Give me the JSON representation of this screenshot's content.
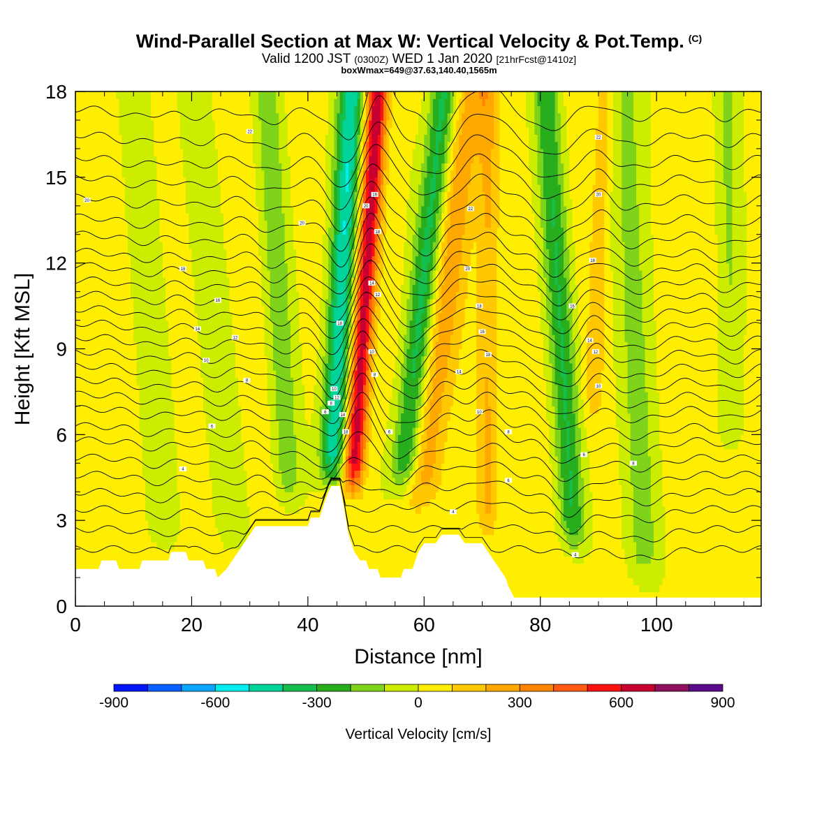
{
  "header": {
    "title": "Wind-Parallel Section at Max W: Vertical Velocity & Pot.Temp.",
    "title_mark": "(C)",
    "valid_line_main": "Valid 1200 JST",
    "valid_line_utc": "(0300Z)",
    "valid_line_date": "WED 1 Jan 2020",
    "valid_line_fcst": "[21hrFcst@1410z]",
    "box_line": "boxWmax=649@37.63,140.40,1565m"
  },
  "chart_data": {
    "type": "heatmap",
    "xlabel": "Distance [nm]",
    "ylabel": "Height [Kft MSL]",
    "xlim": [
      0,
      118
    ],
    "ylim": [
      0,
      18
    ],
    "x_ticks": [
      0,
      20,
      40,
      60,
      80,
      100
    ],
    "y_ticks": [
      0,
      3,
      6,
      9,
      12,
      15,
      18
    ],
    "colorbar": {
      "title": "Vertical Velocity [cm/s]",
      "min": -900,
      "max": 900,
      "step": 100,
      "tick_labels": [
        "-900",
        "-600",
        "-300",
        "0",
        "300",
        "600",
        "900"
      ],
      "colors": [
        "#0016ff",
        "#0a61ff",
        "#0aa5ff",
        "#00eeee",
        "#00d49a",
        "#15bf4e",
        "#28ae1d",
        "#7fd31a",
        "#ccec00",
        "#ffee00",
        "#ffc800",
        "#ffa800",
        "#ff8400",
        "#ff5a10",
        "#ff1010",
        "#c80030",
        "#901060",
        "#5a0a8a"
      ]
    },
    "terrain": [
      [
        0,
        1.3
      ],
      [
        4,
        1.3
      ],
      [
        4.5,
        1.6
      ],
      [
        7,
        1.6
      ],
      [
        7.5,
        1.3
      ],
      [
        11,
        1.3
      ],
      [
        11.5,
        1.6
      ],
      [
        16,
        1.6
      ],
      [
        16.5,
        1.9
      ],
      [
        19,
        1.9
      ],
      [
        19.5,
        1.6
      ],
      [
        22,
        1.6
      ],
      [
        22.5,
        1.3
      ],
      [
        24,
        1.3
      ],
      [
        24.5,
        1.0
      ],
      [
        26,
        1.3
      ],
      [
        27,
        1.6
      ],
      [
        28,
        1.9
      ],
      [
        29,
        2.2
      ],
      [
        30,
        2.5
      ],
      [
        31,
        2.8
      ],
      [
        40,
        2.8
      ],
      [
        40.5,
        3.1
      ],
      [
        42,
        3.1
      ],
      [
        42.5,
        3.4
      ],
      [
        43,
        3.7
      ],
      [
        43.5,
        4.0
      ],
      [
        44,
        4.2
      ],
      [
        45.5,
        4.2
      ],
      [
        46,
        3.7
      ],
      [
        46.5,
        3.1
      ],
      [
        47,
        2.5
      ],
      [
        47.5,
        2.2
      ],
      [
        48,
        1.9
      ],
      [
        49,
        1.6
      ],
      [
        50,
        1.6
      ],
      [
        50.5,
        1.3
      ],
      [
        52,
        1.3
      ],
      [
        52.5,
        1.0
      ],
      [
        56,
        1.0
      ],
      [
        56.5,
        1.3
      ],
      [
        58,
        1.3
      ],
      [
        58.5,
        1.6
      ],
      [
        59,
        1.9
      ],
      [
        60,
        2.2
      ],
      [
        62,
        2.2
      ],
      [
        63,
        2.5
      ],
      [
        66,
        2.5
      ],
      [
        67,
        2.2
      ],
      [
        70,
        2.2
      ],
      [
        71,
        1.9
      ],
      [
        72,
        1.6
      ],
      [
        73,
        1.3
      ],
      [
        74,
        1.0
      ],
      [
        74.5,
        0.7
      ],
      [
        75,
        0.5
      ],
      [
        75.5,
        0.3
      ],
      [
        118,
        0.3
      ]
    ],
    "w_features": [
      {
        "x0": 47.5,
        "x1": 52.0,
        "width": 1.8,
        "ybot": 3.5,
        "ytop": 18,
        "w": 649
      },
      {
        "x0": 44.0,
        "x1": 47.5,
        "width": 2.2,
        "ybot": 3.8,
        "ytop": 18,
        "w": -520
      },
      {
        "x0": 56.0,
        "x1": 63.5,
        "width": 2.4,
        "ybot": 3.5,
        "ytop": 18,
        "w": -380
      },
      {
        "x0": 59.0,
        "x1": 68.0,
        "width": 3.0,
        "ybot": 3.0,
        "ytop": 18,
        "w": 240
      },
      {
        "x0": 71.0,
        "x1": 71.0,
        "width": 1.8,
        "ybot": 2.0,
        "ytop": 18,
        "w": 180
      },
      {
        "x0": 86.0,
        "x1": 81.0,
        "width": 2.2,
        "ybot": 1.5,
        "ytop": 18,
        "w": -320
      },
      {
        "x0": 37.0,
        "x1": 33.0,
        "width": 2.2,
        "ybot": 3.0,
        "ytop": 18,
        "w": -200
      },
      {
        "x0": 27.0,
        "x1": 20.0,
        "width": 2.5,
        "ybot": 1.5,
        "ytop": 18,
        "w": -120
      },
      {
        "x0": 15.0,
        "x1": 10.0,
        "width": 2.5,
        "ybot": 1.5,
        "ytop": 18,
        "w": -110
      },
      {
        "x0": 98.0,
        "x1": 95.0,
        "width": 3.0,
        "ybot": 0.3,
        "ytop": 18,
        "w": -160
      },
      {
        "x0": 113.0,
        "x1": 112.0,
        "width": 2.0,
        "ybot": 5.0,
        "ytop": 18,
        "w": -140
      },
      {
        "x0": 89.0,
        "x1": 91.0,
        "width": 1.5,
        "ybot": 6.0,
        "ytop": 18,
        "w": 140
      }
    ],
    "theta_contours": {
      "count": 27,
      "base_heights_kft": [
        2.0,
        2.7,
        3.4,
        4.0,
        4.6,
        5.2,
        5.8,
        6.3,
        6.9,
        7.4,
        7.9,
        8.4,
        8.9,
        9.4,
        9.9,
        10.4,
        10.9,
        11.4,
        11.9,
        12.4,
        13.0,
        13.6,
        14.3,
        15.0,
        15.7,
        16.5,
        17.4
      ],
      "labels": [
        {
          "x": 18.5,
          "y": 4.8,
          "text": "4"
        },
        {
          "x": 23.5,
          "y": 6.3,
          "text": "6"
        },
        {
          "x": 29.5,
          "y": 7.9,
          "text": "8"
        },
        {
          "x": 22.5,
          "y": 8.6,
          "text": "10"
        },
        {
          "x": 27.5,
          "y": 9.4,
          "text": "12"
        },
        {
          "x": 21.0,
          "y": 9.7,
          "text": "14"
        },
        {
          "x": 24.5,
          "y": 10.7,
          "text": "16"
        },
        {
          "x": 18.5,
          "y": 11.8,
          "text": "18"
        },
        {
          "x": 39.0,
          "y": 13.4,
          "text": "20"
        },
        {
          "x": 2.0,
          "y": 14.2,
          "text": "20"
        },
        {
          "x": 30.0,
          "y": 16.6,
          "text": "22"
        },
        {
          "x": 43.0,
          "y": 6.8,
          "text": "6"
        },
        {
          "x": 44.0,
          "y": 7.1,
          "text": "8"
        },
        {
          "x": 44.5,
          "y": 7.6,
          "text": "10"
        },
        {
          "x": 45.0,
          "y": 7.3,
          "text": "12"
        },
        {
          "x": 46.0,
          "y": 6.7,
          "text": "14"
        },
        {
          "x": 46.5,
          "y": 6.1,
          "text": "18"
        },
        {
          "x": 45.5,
          "y": 9.9,
          "text": "18"
        },
        {
          "x": 51.5,
          "y": 8.1,
          "text": "8"
        },
        {
          "x": 51.0,
          "y": 8.9,
          "text": "10"
        },
        {
          "x": 51.0,
          "y": 11.3,
          "text": "14"
        },
        {
          "x": 52.0,
          "y": 10.9,
          "text": "12"
        },
        {
          "x": 52.0,
          "y": 13.1,
          "text": "18"
        },
        {
          "x": 50.0,
          "y": 14.0,
          "text": "20"
        },
        {
          "x": 51.5,
          "y": 14.4,
          "text": "16"
        },
        {
          "x": 54.0,
          "y": 6.1,
          "text": "6"
        },
        {
          "x": 65.0,
          "y": 3.3,
          "text": "4"
        },
        {
          "x": 67.5,
          "y": 11.8,
          "text": "20"
        },
        {
          "x": 68.0,
          "y": 13.9,
          "text": "22"
        },
        {
          "x": 69.5,
          "y": 10.5,
          "text": "18"
        },
        {
          "x": 70.0,
          "y": 9.6,
          "text": "16"
        },
        {
          "x": 71.0,
          "y": 8.8,
          "text": "18"
        },
        {
          "x": 66.0,
          "y": 8.2,
          "text": "14"
        },
        {
          "x": 69.5,
          "y": 6.8,
          "text": "10"
        },
        {
          "x": 74.5,
          "y": 6.1,
          "text": "8"
        },
        {
          "x": 74.5,
          "y": 4.4,
          "text": "6"
        },
        {
          "x": 86.0,
          "y": 1.8,
          "text": "4"
        },
        {
          "x": 87.5,
          "y": 5.3,
          "text": "6"
        },
        {
          "x": 96.0,
          "y": 5.0,
          "text": "8"
        },
        {
          "x": 90.0,
          "y": 7.7,
          "text": "10"
        },
        {
          "x": 89.5,
          "y": 8.9,
          "text": "12"
        },
        {
          "x": 88.5,
          "y": 9.3,
          "text": "14"
        },
        {
          "x": 85.5,
          "y": 10.5,
          "text": "16"
        },
        {
          "x": 89.0,
          "y": 12.1,
          "text": "18"
        },
        {
          "x": 90.0,
          "y": 14.4,
          "text": "20"
        },
        {
          "x": 90.0,
          "y": 16.4,
          "text": "22"
        }
      ]
    }
  }
}
